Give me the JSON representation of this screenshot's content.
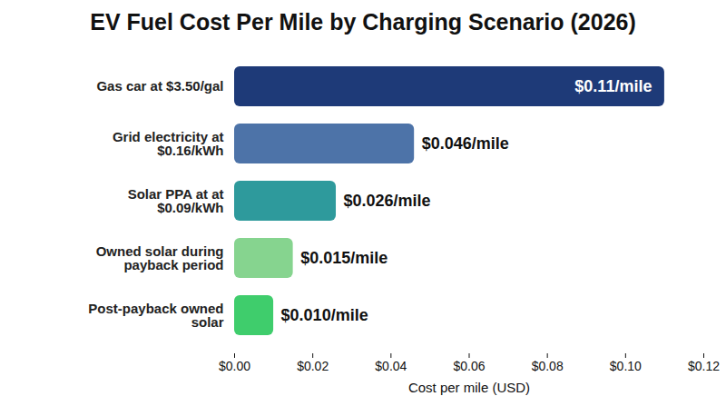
{
  "chart_data": {
    "type": "bar",
    "title": "EV Fuel Cost Per Mile by Charging Scenario (2026)",
    "orientation": "horizontal",
    "categories": [
      "Gas car at $3.50/gal",
      "Grid electricity at $0.16/kWh",
      "Solar PPA at at $0.09/kWh",
      "Owned solar during payback period",
      "Post-payback owned solar"
    ],
    "values": [
      0.11,
      0.046,
      0.026,
      0.015,
      0.01
    ],
    "value_labels": [
      "$0.11/mile",
      "$0.046/mile",
      "$0.026/mile",
      "$0.015/mile",
      "$0.010/mile"
    ],
    "colors": [
      "#1e3a78",
      "#4d73a8",
      "#2e9a9c",
      "#86d48f",
      "#3fcd6c"
    ],
    "xlabel": "Cost per mile (USD)",
    "xlim": [
      0,
      0.12
    ],
    "xticks": [
      {
        "value": 0,
        "label": "$0.00"
      },
      {
        "value": 0.02,
        "label": "$0.02"
      },
      {
        "value": 0.04,
        "label": "$0.04"
      },
      {
        "value": 0.06,
        "label": "$0.06"
      },
      {
        "value": 0.08,
        "label": "$0.08"
      },
      {
        "value": 0.1,
        "label": "$0.10"
      },
      {
        "value": 0.12,
        "label": "$0.12"
      }
    ],
    "data_labels": true,
    "grid": false
  }
}
